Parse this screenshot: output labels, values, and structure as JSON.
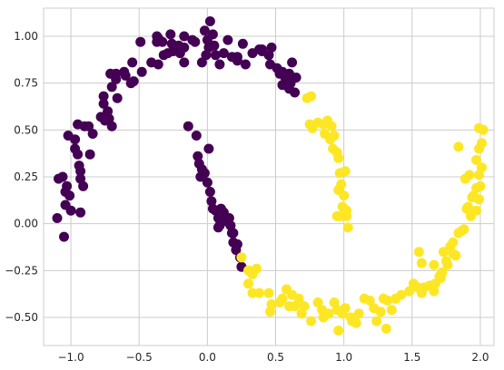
{
  "chart_data": {
    "type": "scatter",
    "title": "",
    "xlabel": "",
    "ylabel": "",
    "xlim": [
      -1.2,
      2.1
    ],
    "ylim": [
      -0.65,
      1.15
    ],
    "grid": true,
    "legend": "none",
    "xticks": [
      {
        "value": -1.0,
        "label": "−1.0"
      },
      {
        "value": -0.5,
        "label": "−0.5"
      },
      {
        "value": 0.0,
        "label": "0.0"
      },
      {
        "value": 0.5,
        "label": "0.5"
      },
      {
        "value": 1.0,
        "label": "1.0"
      },
      {
        "value": 1.5,
        "label": "1.5"
      },
      {
        "value": 2.0,
        "label": "2.0"
      }
    ],
    "yticks": [
      {
        "value": -0.5,
        "label": "−0.50"
      },
      {
        "value": -0.25,
        "label": "−0.25"
      },
      {
        "value": 0.0,
        "label": "0.00"
      },
      {
        "value": 0.25,
        "label": "0.25"
      },
      {
        "value": 0.5,
        "label": "0.50"
      },
      {
        "value": 0.75,
        "label": "0.75"
      },
      {
        "value": 1.0,
        "label": "1.00"
      }
    ],
    "series": [
      {
        "color": "#440154",
        "points": [
          [
            -1.1,
            0.03
          ],
          [
            -1.05,
            -0.07
          ],
          [
            -1.09,
            0.24
          ],
          [
            -1.06,
            0.25
          ],
          [
            -1.04,
            0.17
          ],
          [
            -1.03,
            0.2
          ],
          [
            -1.01,
            0.15
          ],
          [
            -1.04,
            0.1
          ],
          [
            -1.0,
            0.07
          ],
          [
            -0.93,
            0.06
          ],
          [
            -1.02,
            0.47
          ],
          [
            -0.97,
            0.45
          ],
          [
            -0.97,
            0.4
          ],
          [
            -0.95,
            0.37
          ],
          [
            -0.94,
            0.31
          ],
          [
            -0.93,
            0.28
          ],
          [
            -0.93,
            0.24
          ],
          [
            -0.91,
            0.2
          ],
          [
            -0.95,
            0.53
          ],
          [
            -0.9,
            0.52
          ],
          [
            -0.87,
            0.52
          ],
          [
            -0.84,
            0.48
          ],
          [
            -0.86,
            0.37
          ],
          [
            -0.78,
            0.57
          ],
          [
            -0.76,
            0.64
          ],
          [
            -0.73,
            0.6
          ],
          [
            -0.75,
            0.55
          ],
          [
            -0.72,
            0.56
          ],
          [
            -0.7,
            0.52
          ],
          [
            -0.76,
            0.68
          ],
          [
            -0.71,
            0.8
          ],
          [
            -0.7,
            0.73
          ],
          [
            -0.67,
            0.8
          ],
          [
            -0.66,
            0.67
          ],
          [
            -0.67,
            0.77
          ],
          [
            -0.61,
            0.81
          ],
          [
            -0.6,
            0.79
          ],
          [
            -0.55,
            0.86
          ],
          [
            -0.56,
            0.75
          ],
          [
            -0.54,
            0.76
          ],
          [
            -0.48,
            0.81
          ],
          [
            -0.41,
            0.86
          ],
          [
            -0.36,
            0.85
          ],
          [
            -0.49,
            0.97
          ],
          [
            -0.37,
            0.97
          ],
          [
            -0.33,
            0.97
          ],
          [
            -0.29,
            0.91
          ],
          [
            -0.36,
            0.99
          ],
          [
            -0.32,
            0.9
          ],
          [
            -0.27,
            1.01
          ],
          [
            -0.37,
            1.0
          ],
          [
            -0.26,
            0.96
          ],
          [
            -0.21,
            0.95
          ],
          [
            -0.2,
            0.91
          ],
          [
            -0.17,
            1.0
          ],
          [
            -0.17,
            0.86
          ],
          [
            -0.25,
            0.92
          ],
          [
            -0.17,
            0.94
          ],
          [
            -0.11,
            0.98
          ],
          [
            -0.09,
            0.97
          ],
          [
            -0.02,
            1.03
          ],
          [
            0.02,
            1.08
          ],
          [
            0.0,
            0.98
          ],
          [
            0.04,
            1.01
          ],
          [
            0.01,
            0.94
          ],
          [
            0.05,
            0.95
          ],
          [
            -0.01,
            0.9
          ],
          [
            0.09,
            0.85
          ],
          [
            0.06,
            0.9
          ],
          [
            -0.04,
            0.86
          ],
          [
            0.12,
            0.91
          ],
          [
            0.15,
            0.98
          ],
          [
            0.18,
            0.89
          ],
          [
            0.22,
            0.89
          ],
          [
            0.26,
            0.96
          ],
          [
            0.22,
            0.87
          ],
          [
            0.33,
            0.91
          ],
          [
            0.28,
            0.85
          ],
          [
            0.38,
            0.93
          ],
          [
            0.4,
            0.92
          ],
          [
            0.4,
            0.93
          ],
          [
            0.45,
            0.9
          ],
          [
            0.47,
            0.94
          ],
          [
            0.46,
            0.85
          ],
          [
            0.51,
            0.83
          ],
          [
            0.53,
            0.8
          ],
          [
            0.55,
            0.74
          ],
          [
            0.6,
            0.8
          ],
          [
            0.55,
            0.81
          ],
          [
            0.61,
            0.75
          ],
          [
            0.64,
            0.7
          ],
          [
            0.57,
            0.78
          ],
          [
            0.62,
            0.86
          ],
          [
            0.65,
            0.78
          ],
          [
            0.6,
            0.72
          ],
          [
            -0.14,
            0.52
          ],
          [
            -0.08,
            0.47
          ],
          [
            -0.07,
            0.36
          ],
          [
            -0.06,
            0.32
          ],
          [
            -0.05,
            0.25
          ],
          [
            -0.02,
            0.27
          ],
          [
            0.0,
            0.22
          ],
          [
            0.02,
            0.17
          ],
          [
            0.03,
            0.12
          ],
          [
            0.04,
            0.08
          ],
          [
            0.06,
            0.07
          ],
          [
            0.08,
            0.03
          ],
          [
            0.09,
            -0.01
          ],
          [
            0.12,
            0.02
          ],
          [
            0.15,
            0.01
          ],
          [
            0.17,
            -0.01
          ],
          [
            0.18,
            -0.05
          ],
          [
            0.19,
            -0.1
          ],
          [
            0.21,
            -0.14
          ],
          [
            0.24,
            -0.18
          ],
          [
            0.25,
            -0.23
          ],
          [
            0.1,
            0.08
          ],
          [
            0.08,
            -0.02
          ],
          [
            0.12,
            0.06
          ],
          [
            0.16,
            0.03
          ],
          [
            -0.04,
            0.29
          ],
          [
            0.01,
            0.4
          ],
          [
            0.12,
            0.03
          ],
          [
            0.19,
            -0.05
          ],
          [
            0.22,
            -0.11
          ]
        ]
      },
      {
        "color": "#fde725",
        "points": [
          [
            0.73,
            0.67
          ],
          [
            0.76,
            0.68
          ],
          [
            0.75,
            0.53
          ],
          [
            0.77,
            0.51
          ],
          [
            0.81,
            0.54
          ],
          [
            0.85,
            0.53
          ],
          [
            0.88,
            0.55
          ],
          [
            0.91,
            0.52
          ],
          [
            0.86,
            0.48
          ],
          [
            0.9,
            0.45
          ],
          [
            0.93,
            0.47
          ],
          [
            0.92,
            0.4
          ],
          [
            0.95,
            0.38
          ],
          [
            0.96,
            0.35
          ],
          [
            0.97,
            0.27
          ],
          [
            1.01,
            0.28
          ],
          [
            0.98,
            0.21
          ],
          [
            0.96,
            0.18
          ],
          [
            1.0,
            0.15
          ],
          [
            1.02,
            0.07
          ],
          [
            0.99,
            0.09
          ],
          [
            1.02,
            0.04
          ],
          [
            0.95,
            0.04
          ],
          [
            0.98,
            0.04
          ],
          [
            1.03,
            -0.02
          ],
          [
            0.25,
            -0.18
          ],
          [
            0.3,
            -0.25
          ],
          [
            0.33,
            -0.27
          ],
          [
            0.36,
            -0.24
          ],
          [
            0.3,
            -0.32
          ],
          [
            0.33,
            -0.37
          ],
          [
            0.38,
            -0.37
          ],
          [
            0.45,
            -0.37
          ],
          [
            0.47,
            -0.43
          ],
          [
            0.46,
            -0.47
          ],
          [
            0.53,
            -0.42
          ],
          [
            0.55,
            -0.4
          ],
          [
            0.58,
            -0.35
          ],
          [
            0.62,
            -0.38
          ],
          [
            0.64,
            -0.44
          ],
          [
            0.6,
            -0.44
          ],
          [
            0.69,
            -0.48
          ],
          [
            0.67,
            -0.4
          ],
          [
            0.71,
            -0.44
          ],
          [
            0.76,
            -0.52
          ],
          [
            0.81,
            -0.42
          ],
          [
            0.84,
            -0.46
          ],
          [
            0.85,
            -0.5
          ],
          [
            0.89,
            -0.48
          ],
          [
            0.93,
            -0.42
          ],
          [
            0.95,
            -0.46
          ],
          [
            0.96,
            -0.57
          ],
          [
            0.99,
            -0.48
          ],
          [
            1.01,
            -0.45
          ],
          [
            1.05,
            -0.5
          ],
          [
            1.06,
            -0.52
          ],
          [
            1.09,
            -0.53
          ],
          [
            1.11,
            -0.48
          ],
          [
            1.15,
            -0.4
          ],
          [
            1.19,
            -0.41
          ],
          [
            1.22,
            -0.45
          ],
          [
            1.24,
            -0.52
          ],
          [
            1.27,
            -0.47
          ],
          [
            1.29,
            -0.4
          ],
          [
            1.31,
            -0.56
          ],
          [
            1.32,
            -0.41
          ],
          [
            1.35,
            -0.46
          ],
          [
            1.38,
            -0.4
          ],
          [
            1.42,
            -0.38
          ],
          [
            1.48,
            -0.36
          ],
          [
            1.51,
            -0.32
          ],
          [
            1.54,
            -0.34
          ],
          [
            1.57,
            -0.37
          ],
          [
            1.59,
            -0.34
          ],
          [
            1.63,
            -0.33
          ],
          [
            1.66,
            -0.36
          ],
          [
            1.67,
            -0.32
          ],
          [
            1.7,
            -0.28
          ],
          [
            1.71,
            -0.29
          ],
          [
            1.72,
            -0.26
          ],
          [
            1.75,
            -0.2
          ],
          [
            1.78,
            -0.12
          ],
          [
            1.8,
            -0.1
          ],
          [
            1.82,
            -0.17
          ],
          [
            1.84,
            -0.05
          ],
          [
            1.86,
            -0.04
          ],
          [
            1.88,
            -0.03
          ],
          [
            1.9,
            0.08
          ],
          [
            1.91,
            0.09
          ],
          [
            1.93,
            0.04
          ],
          [
            1.95,
            0.15
          ],
          [
            1.97,
            0.19
          ],
          [
            1.99,
            0.13
          ],
          [
            2.01,
            0.3
          ],
          [
            1.97,
            0.34
          ],
          [
            1.99,
            0.26
          ],
          [
            2.0,
            0.2
          ],
          [
            1.99,
            0.4
          ],
          [
            2.01,
            0.43
          ],
          [
            1.99,
            0.51
          ],
          [
            2.02,
            0.5
          ],
          [
            1.84,
            0.41
          ],
          [
            1.89,
            0.24
          ],
          [
            1.92,
            0.26
          ],
          [
            1.97,
            0.07
          ],
          [
            1.94,
            0.14
          ],
          [
            1.55,
            -0.15
          ],
          [
            1.57,
            -0.21
          ],
          [
            1.66,
            -0.22
          ],
          [
            1.73,
            -0.15
          ],
          [
            1.76,
            -0.22
          ],
          [
            1.8,
            -0.16
          ]
        ]
      }
    ]
  }
}
